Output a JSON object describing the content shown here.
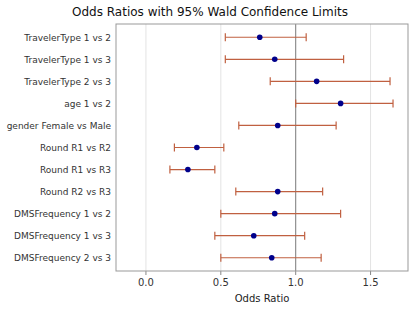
{
  "chart_data": {
    "type": "forest",
    "title": "Odds Ratios with 95% Wald Confidence Limits",
    "xlabel": "Odds Ratio",
    "orientation": "horizontal",
    "categories": [
      "TravelerType 1 vs 2",
      "TravelerType 1 vs 3",
      "TravelerType 2 vs 3",
      "age 1 vs 2",
      "gender Female vs Male",
      "Round R1 vs R2",
      "Round R1 vs R3",
      "Round R2 vs R3",
      "DMSFrequency 1 vs 2",
      "DMSFrequency 1 vs 3",
      "DMSFrequency 2 vs 3"
    ],
    "values": [
      0.76,
      0.86,
      1.14,
      1.3,
      0.88,
      0.34,
      0.28,
      0.88,
      0.86,
      0.72,
      0.84
    ],
    "color": "#00008B",
    "error_bars": {
      "lower": [
        0.53,
        0.53,
        0.83,
        1.0,
        0.62,
        0.19,
        0.16,
        0.6,
        0.5,
        0.46,
        0.5
      ],
      "upper": [
        1.07,
        1.32,
        1.63,
        1.65,
        1.27,
        0.52,
        0.46,
        1.18,
        1.3,
        1.06,
        1.17
      ],
      "color": "#C06040"
    },
    "reference_line": {
      "value": 1,
      "color": "#808080"
    },
    "xlim": [
      -0.2,
      1.75
    ],
    "xticks": [
      {
        "value": 0,
        "label": "0.0"
      },
      0.5,
      {
        "value": 1,
        "label": "1.0"
      },
      1.5
    ],
    "grid": true
  }
}
